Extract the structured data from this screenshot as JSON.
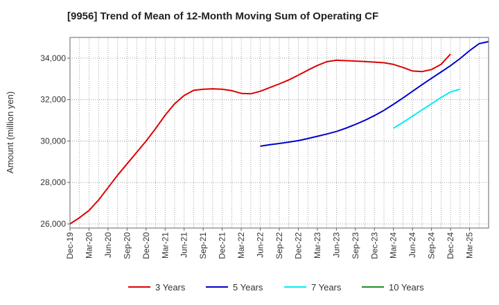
{
  "chart_data": {
    "type": "line",
    "title": "[9956]  Trend of Mean of 12-Month Moving Sum of Operating CF",
    "xlabel": "",
    "ylabel": "Amount (million yen)",
    "ylim": [
      25800,
      35000
    ],
    "yticks": [
      26000,
      28000,
      30000,
      32000,
      34000
    ],
    "ytick_labels": [
      "26,000",
      "28,000",
      "30,000",
      "32,000",
      "34,000"
    ],
    "x_categories": [
      "Dec-19",
      "Mar-20",
      "Jun-20",
      "Sep-20",
      "Dec-20",
      "Mar-21",
      "Jun-21",
      "Sep-21",
      "Dec-21",
      "Mar-22",
      "Jun-22",
      "Sep-22",
      "Dec-22",
      "Mar-23",
      "Jun-23",
      "Sep-23",
      "Dec-23",
      "Mar-24",
      "Jun-24",
      "Sep-24",
      "Dec-24",
      "Mar-25"
    ],
    "grid": true,
    "legend_position": "bottom",
    "series": [
      {
        "name": "3 Years",
        "color": "#dd0000",
        "points": [
          [
            0,
            26000
          ],
          [
            1,
            26300
          ],
          [
            2,
            26650
          ],
          [
            3,
            27150
          ],
          [
            4,
            27750
          ],
          [
            5,
            28350
          ],
          [
            6,
            28900
          ],
          [
            7,
            29450
          ],
          [
            8,
            30000
          ],
          [
            9,
            30600
          ],
          [
            10,
            31250
          ],
          [
            11,
            31800
          ],
          [
            12,
            32200
          ],
          [
            13,
            32450
          ],
          [
            14,
            32500
          ],
          [
            15,
            32520
          ],
          [
            16,
            32500
          ],
          [
            17,
            32430
          ],
          [
            18,
            32300
          ],
          [
            19,
            32280
          ],
          [
            20,
            32400
          ],
          [
            21,
            32580
          ],
          [
            22,
            32760
          ],
          [
            23,
            32950
          ],
          [
            24,
            33180
          ],
          [
            25,
            33420
          ],
          [
            26,
            33650
          ],
          [
            27,
            33830
          ],
          [
            28,
            33900
          ],
          [
            29,
            33880
          ],
          [
            30,
            33860
          ],
          [
            31,
            33840
          ],
          [
            32,
            33810
          ],
          [
            33,
            33780
          ],
          [
            34,
            33700
          ],
          [
            35,
            33550
          ],
          [
            36,
            33380
          ],
          [
            37,
            33350
          ],
          [
            38,
            33450
          ],
          [
            39,
            33700
          ],
          [
            40,
            34200
          ]
        ]
      },
      {
        "name": "5 Years",
        "color": "#0000cc",
        "points": [
          [
            20,
            29750
          ],
          [
            21,
            29820
          ],
          [
            22,
            29880
          ],
          [
            23,
            29950
          ],
          [
            24,
            30020
          ],
          [
            25,
            30120
          ],
          [
            26,
            30230
          ],
          [
            27,
            30340
          ],
          [
            28,
            30460
          ],
          [
            29,
            30620
          ],
          [
            30,
            30800
          ],
          [
            31,
            31000
          ],
          [
            32,
            31230
          ],
          [
            33,
            31480
          ],
          [
            34,
            31770
          ],
          [
            35,
            32080
          ],
          [
            36,
            32400
          ],
          [
            37,
            32720
          ],
          [
            38,
            33030
          ],
          [
            39,
            33330
          ],
          [
            40,
            33640
          ],
          [
            41,
            33980
          ],
          [
            42,
            34360
          ],
          [
            43,
            34700
          ],
          [
            44,
            34800
          ]
        ]
      },
      {
        "name": "7 Years",
        "color": "#00eeee",
        "points": [
          [
            34,
            30620
          ],
          [
            35,
            30900
          ],
          [
            36,
            31200
          ],
          [
            37,
            31500
          ],
          [
            38,
            31800
          ],
          [
            39,
            32100
          ],
          [
            40,
            32370
          ],
          [
            41,
            32500
          ]
        ]
      },
      {
        "name": "10 Years",
        "color": "#228b22",
        "points": []
      }
    ]
  }
}
